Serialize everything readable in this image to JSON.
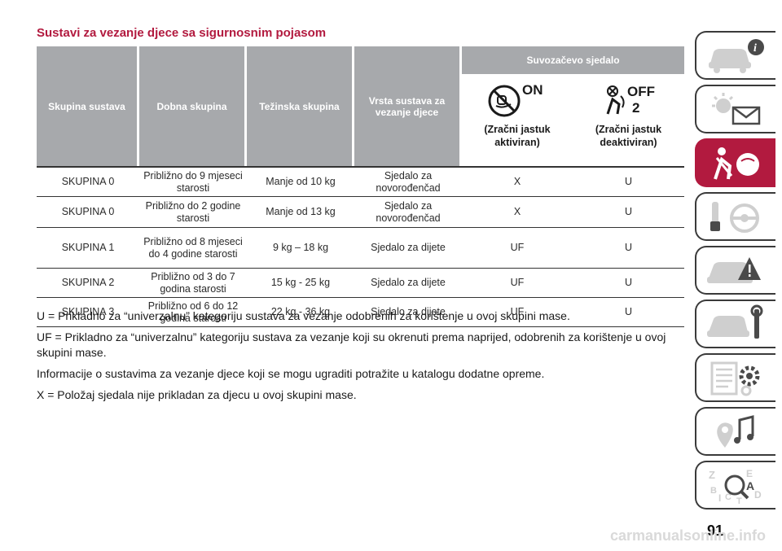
{
  "title": "Sustavi za vezanje djece sa sigurnosnim pojasom",
  "table": {
    "headers": [
      "Skupina sustava",
      "Dobna skupina",
      "Težinska skupina",
      "Vrsta sustava za vezanje djece"
    ],
    "passenger_seat_header": "Suvozačevo sjedalo",
    "airbag_on": {
      "badge": "ON",
      "label": "(Zračni jastuk aktiviran)",
      "icon": "airbag-on-icon"
    },
    "airbag_off": {
      "badge": "OFF",
      "badge_number": "2",
      "label": "(Zračni jastuk deaktiviran)",
      "icon": "airbag-off-icon"
    },
    "rows": [
      {
        "group": "SKUPINA 0",
        "age": "Približno do 9 mjeseci starosti",
        "weight": "Manje od 10 kg",
        "type": "Sjedalo za novorođenčad",
        "on": "X",
        "off": "U"
      },
      {
        "group": "SKUPINA 0",
        "age": "Približno do 2 godine starosti",
        "weight": "Manje od 13 kg",
        "type": "Sjedalo za novorođenčad",
        "on": "X",
        "off": "U"
      },
      {
        "group": "SKUPINA 1",
        "age": "Približno od 8 mjeseci do 4 godine starosti",
        "weight": "9 kg – 18 kg",
        "type": "Sjedalo za dijete",
        "on": "UF",
        "off": "U"
      },
      {
        "group": "SKUPINA 2",
        "age": "Približno od 3 do 7 godina starosti",
        "weight": "15 kg - 25 kg",
        "type": "Sjedalo za dijete",
        "on": "UF",
        "off": "U"
      },
      {
        "group": "SKUPINA 3",
        "age": "Približno od 6 do 12 godina starosti",
        "weight": "22 kg - 36 kg",
        "type": "Sjedalo za dijete",
        "on": "UF",
        "off": "U"
      }
    ]
  },
  "notes": [
    "U = Prikladno za “univerzalnu” kategoriju sustava za vezanje odobrenih za korištenje u ovoj skupini mase.",
    "UF = Prikladno za “univerzalnu” kategoriju sustava za vezanje koji su okrenuti prema naprijed, odobrenih za korištenje u ovoj skupini mase.",
    "Informacije o sustavima za vezanje djece koji se mogu ugraditi potražite u katalogu dodatne opreme.",
    "X = Položaj sjedala nije prikladan za djecu u ovoj skupini mase."
  ],
  "sidebar_tabs": [
    {
      "icon": "car-info-icon",
      "active": false
    },
    {
      "icon": "warning-lights-icon",
      "active": false
    },
    {
      "icon": "seatbelt-airbag-icon",
      "active": true
    },
    {
      "icon": "steering-wheel-key-icon",
      "active": false
    },
    {
      "icon": "car-emergency-icon",
      "active": false
    },
    {
      "icon": "car-maintenance-icon",
      "active": false
    },
    {
      "icon": "technical-data-icon",
      "active": false
    },
    {
      "icon": "multimedia-icon",
      "active": false
    },
    {
      "icon": "index-icon",
      "active": false
    }
  ],
  "page_number": "91",
  "footer": "carmanualsonline.info",
  "colors": {
    "accent": "#b21a3f",
    "header_gray": "#a7a9ac"
  }
}
